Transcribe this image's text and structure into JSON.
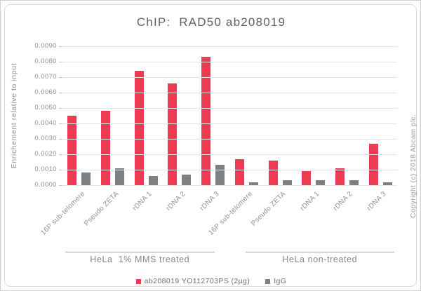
{
  "window": {
    "copyright": "Copyright (c) 2018 Abcam plc."
  },
  "chart_data": {
    "type": "bar",
    "title": "ChIP:  RAD50 ab208019",
    "ylabel": "Enrichement relative to input",
    "xlabel": "",
    "ylim": [
      0,
      0.009
    ],
    "ytick_step": 0.001,
    "ytick_decimals": 4,
    "grid": true,
    "legend_position": "bottom",
    "categories": [
      "16P sub-telomere",
      "Pseudo ZETA",
      "rDNA 1",
      "rDNA 2",
      "rDNA 3",
      "16P sub-telomere",
      "Pseudo ZETA",
      "rDNA 1",
      "rDNA 2",
      "rDNA 3"
    ],
    "groups": [
      {
        "label": "HeLa  1% MMS treated",
        "span": [
          0,
          4
        ]
      },
      {
        "label": "HeLa non-treated",
        "span": [
          5,
          9
        ]
      }
    ],
    "series": [
      {
        "name": "ab208019 YO112703PS (2µg)",
        "color": "#ec3b52",
        "values": [
          0.0045,
          0.0048,
          0.0074,
          0.0066,
          0.0083,
          0.0017,
          0.0016,
          0.0009,
          0.0011,
          0.0027
        ]
      },
      {
        "name": "IgG",
        "color": "#7b8184",
        "values": [
          0.0008,
          0.0011,
          0.0006,
          0.0007,
          0.0013,
          0.0002,
          0.0003,
          0.0003,
          0.0003,
          0.0002
        ]
      }
    ]
  }
}
